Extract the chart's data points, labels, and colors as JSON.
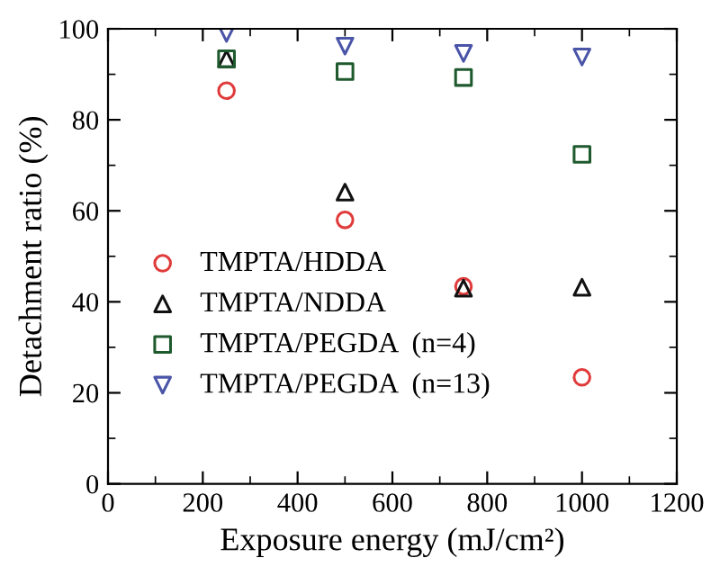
{
  "chart_data": {
    "type": "scatter",
    "xlabel": "Exposure energy (mJ/cm²)",
    "ylabel": "Detachment ratio (%)",
    "x": [
      250,
      500,
      750,
      1000
    ],
    "series": [
      {
        "name": "TMPTA/HDDA",
        "color": "#e03a3a",
        "marker": "circle",
        "values": [
          86.4,
          58,
          43.4,
          23.4
        ]
      },
      {
        "name": "TMPTA/NDDA",
        "color": "#111111",
        "marker": "triangle",
        "values": [
          93.4,
          64.1,
          43,
          43.2
        ]
      },
      {
        "name": "TMPTA/PEGDA  (n=4)",
        "color": "#1f5a2e",
        "marker": "square",
        "values": [
          93.4,
          90.6,
          89.3,
          72.4
        ]
      },
      {
        "name": "TMPTA/PEGDA  (n=13)",
        "color": "#4a55a8",
        "marker": "triangle_down",
        "values": [
          99,
          96.2,
          94.6,
          93.8
        ]
      }
    ],
    "xlim": [
      0,
      1200
    ],
    "xticks": [
      0,
      200,
      400,
      600,
      800,
      1000,
      1200
    ],
    "ylim": [
      0,
      100
    ],
    "yticks": [
      0,
      20,
      40,
      60,
      80,
      100
    ],
    "legend": "lower left",
    "grid": false
  }
}
